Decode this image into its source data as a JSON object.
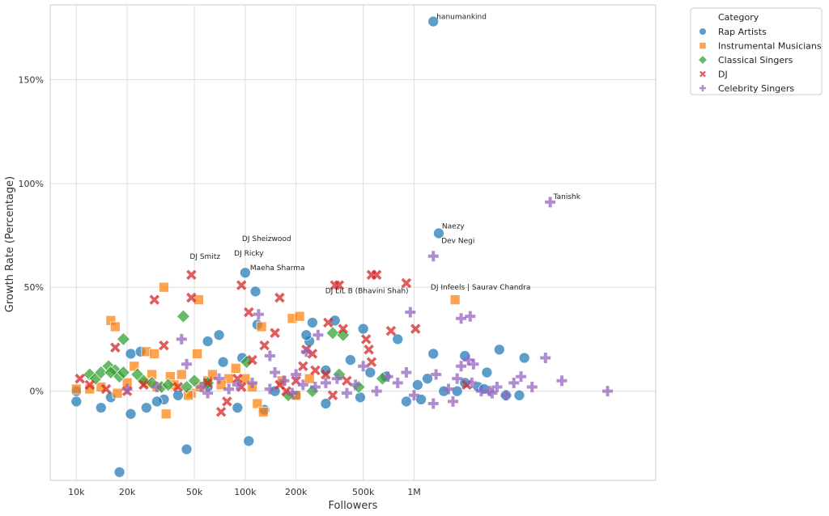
{
  "chart_data": {
    "type": "scatter",
    "xlabel": "Followers",
    "ylabel": "Growth Rate (Percentage)",
    "x_scale": "log",
    "xlim": [
      7000,
      27000000
    ],
    "ylim": [
      -43,
      186
    ],
    "x_ticks": [
      {
        "value": 10000,
        "label": "10k"
      },
      {
        "value": 20000,
        "label": "20k"
      },
      {
        "value": 50000,
        "label": "50k"
      },
      {
        "value": 100000,
        "label": "100k"
      },
      {
        "value": 200000,
        "label": "200k"
      },
      {
        "value": 500000,
        "label": "500k"
      },
      {
        "value": 1000000,
        "label": "1M"
      }
    ],
    "y_ticks": [
      {
        "value": 0,
        "label": "0%"
      },
      {
        "value": 50,
        "label": "50%"
      },
      {
        "value": 100,
        "label": "100%"
      },
      {
        "value": 150,
        "label": "150%"
      }
    ],
    "grid": true,
    "legend": {
      "title": "Category",
      "placement": "outside-top-right"
    },
    "series": [
      {
        "name": "Rap Artists",
        "marker": "circle",
        "color": "#1f77b4",
        "points": [
          [
            1300000,
            178
          ],
          [
            1400000,
            76
          ],
          [
            100000,
            57
          ],
          [
            115000,
            48
          ],
          [
            1300000,
            18
          ],
          [
            800000,
            25
          ],
          [
            500000,
            30
          ],
          [
            340000,
            34
          ],
          [
            60000,
            24
          ],
          [
            70000,
            27
          ],
          [
            96000,
            16
          ],
          [
            74000,
            14
          ],
          [
            2000000,
            17
          ],
          [
            3200000,
            20
          ],
          [
            4500000,
            16
          ],
          [
            18000,
            -39
          ],
          [
            45000,
            -28
          ],
          [
            105000,
            -24
          ],
          [
            10000,
            -5
          ],
          [
            14000,
            -8
          ],
          [
            21000,
            -11
          ],
          [
            26000,
            -8
          ],
          [
            33000,
            -4
          ],
          [
            90000,
            -8
          ],
          [
            130000,
            -9
          ],
          [
            300000,
            -6
          ],
          [
            480000,
            -3
          ],
          [
            900000,
            -5
          ],
          [
            1100000,
            -4
          ],
          [
            1200000,
            6
          ],
          [
            1050000,
            3
          ],
          [
            1500000,
            0
          ],
          [
            2000000,
            4
          ],
          [
            2400000,
            2
          ],
          [
            2700000,
            9
          ],
          [
            3500000,
            -2
          ],
          [
            4200000,
            -2
          ],
          [
            21000,
            18
          ],
          [
            24000,
            19
          ],
          [
            118000,
            32
          ],
          [
            250000,
            33
          ],
          [
            240000,
            24
          ],
          [
            230000,
            27
          ],
          [
            300000,
            10
          ],
          [
            420000,
            15
          ],
          [
            200000,
            -2
          ],
          [
            150000,
            0
          ],
          [
            60000,
            2
          ],
          [
            40000,
            -2
          ],
          [
            30000,
            -5
          ],
          [
            16000,
            -3
          ],
          [
            10000,
            0
          ],
          [
            550000,
            9
          ],
          [
            680000,
            7
          ],
          [
            1800000,
            0
          ],
          [
            2600000,
            1
          ]
        ]
      },
      {
        "name": "Instrumental Musicians",
        "marker": "square",
        "color": "#ff7f0e",
        "points": [
          [
            16000,
            34
          ],
          [
            17000,
            31
          ],
          [
            33000,
            50
          ],
          [
            53000,
            44
          ],
          [
            125000,
            31
          ],
          [
            190000,
            35
          ],
          [
            210000,
            36
          ],
          [
            1750000,
            44
          ],
          [
            26000,
            19
          ],
          [
            29000,
            18
          ],
          [
            52000,
            18
          ],
          [
            22000,
            12
          ],
          [
            34000,
            -11
          ],
          [
            118000,
            -6
          ],
          [
            128000,
            -10
          ],
          [
            28000,
            8
          ],
          [
            36000,
            7
          ],
          [
            42000,
            8
          ],
          [
            48000,
            -1
          ],
          [
            54000,
            2
          ],
          [
            60000,
            5
          ],
          [
            64000,
            8
          ],
          [
            80000,
            6
          ],
          [
            88000,
            11
          ],
          [
            100000,
            6
          ],
          [
            110000,
            2
          ],
          [
            200000,
            -2
          ],
          [
            12000,
            1
          ],
          [
            14000,
            2
          ],
          [
            17500,
            -1
          ],
          [
            20000,
            4
          ],
          [
            38000,
            3
          ],
          [
            46000,
            -2
          ],
          [
            72000,
            3
          ],
          [
            165000,
            5
          ],
          [
            240000,
            6
          ],
          [
            10000,
            1
          ],
          [
            26000,
            4
          ],
          [
            30000,
            2
          ]
        ]
      },
      {
        "name": "Classical Singers",
        "marker": "diamond",
        "color": "#2ca02c",
        "points": [
          [
            43000,
            36
          ],
          [
            19000,
            25
          ],
          [
            15500,
            12
          ],
          [
            12000,
            8
          ],
          [
            13000,
            6
          ],
          [
            14000,
            9
          ],
          [
            17000,
            10
          ],
          [
            18000,
            7
          ],
          [
            23000,
            8
          ],
          [
            25000,
            5
          ],
          [
            32000,
            2
          ],
          [
            50000,
            5
          ],
          [
            330000,
            28
          ],
          [
            380000,
            27
          ],
          [
            360000,
            8
          ],
          [
            470000,
            2
          ],
          [
            180000,
            -2
          ],
          [
            250000,
            0
          ],
          [
            650000,
            6
          ],
          [
            102000,
            14
          ],
          [
            16000,
            9
          ],
          [
            19000,
            9
          ],
          [
            28000,
            4
          ],
          [
            35000,
            3
          ],
          [
            45000,
            2
          ],
          [
            60000,
            4
          ]
        ]
      },
      {
        "name": "DJ",
        "marker": "x",
        "color": "#d62728",
        "points": [
          [
            48000,
            56
          ],
          [
            95000,
            51
          ],
          [
            160000,
            45
          ],
          [
            48000,
            45
          ],
          [
            29000,
            44
          ],
          [
            33000,
            22
          ],
          [
            17000,
            21
          ],
          [
            340000,
            51
          ],
          [
            360000,
            51
          ],
          [
            560000,
            56
          ],
          [
            600000,
            56
          ],
          [
            900000,
            52
          ],
          [
            730000,
            29
          ],
          [
            1020000,
            30
          ],
          [
            130000,
            22
          ],
          [
            150000,
            28
          ],
          [
            105000,
            38
          ],
          [
            110000,
            15
          ],
          [
            230000,
            20
          ],
          [
            250000,
            18
          ],
          [
            310000,
            33
          ],
          [
            380000,
            30
          ],
          [
            520000,
            25
          ],
          [
            540000,
            20
          ],
          [
            560000,
            14
          ],
          [
            72000,
            -10
          ],
          [
            78000,
            -5
          ],
          [
            95000,
            2
          ],
          [
            160000,
            3
          ],
          [
            175000,
            0
          ],
          [
            200000,
            5
          ],
          [
            220000,
            12
          ],
          [
            260000,
            10
          ],
          [
            300000,
            8
          ],
          [
            400000,
            5
          ],
          [
            10500,
            6
          ],
          [
            12000,
            3
          ],
          [
            15000,
            1
          ],
          [
            20000,
            0
          ],
          [
            25000,
            3
          ],
          [
            40000,
            2
          ],
          [
            60000,
            4
          ],
          [
            90000,
            6
          ],
          [
            330000,
            -2
          ],
          [
            2050000,
            3
          ]
        ]
      },
      {
        "name": "Celebrity Singers",
        "marker": "plus",
        "color": "#9467bd",
        "points": [
          [
            6400000,
            91
          ],
          [
            1300000,
            65
          ],
          [
            950000,
            38
          ],
          [
            1900000,
            35
          ],
          [
            2150000,
            36
          ],
          [
            42000,
            25
          ],
          [
            120000,
            37
          ],
          [
            140000,
            17
          ],
          [
            230000,
            19
          ],
          [
            270000,
            27
          ],
          [
            2100000,
            15
          ],
          [
            2250000,
            13
          ],
          [
            1900000,
            12
          ],
          [
            1350000,
            8
          ],
          [
            1600000,
            1
          ],
          [
            1800000,
            6
          ],
          [
            2200000,
            4
          ],
          [
            2500000,
            0
          ],
          [
            2800000,
            0
          ],
          [
            3100000,
            2
          ],
          [
            3500000,
            -2
          ],
          [
            3900000,
            4
          ],
          [
            4300000,
            7
          ],
          [
            5000000,
            2
          ],
          [
            6000000,
            16
          ],
          [
            7500000,
            5
          ],
          [
            14000000,
            0
          ],
          [
            1300000,
            -6
          ],
          [
            1700000,
            -5
          ],
          [
            1000000,
            -2
          ],
          [
            800000,
            4
          ],
          [
            700000,
            7
          ],
          [
            600000,
            0
          ],
          [
            450000,
            3
          ],
          [
            350000,
            6
          ],
          [
            300000,
            4
          ],
          [
            260000,
            2
          ],
          [
            200000,
            8
          ],
          [
            170000,
            5
          ],
          [
            140000,
            1
          ],
          [
            110000,
            4
          ],
          [
            90000,
            3
          ],
          [
            70000,
            6
          ],
          [
            55000,
            2
          ],
          [
            45000,
            13
          ],
          [
            60000,
            -1
          ],
          [
            80000,
            1
          ],
          [
            30000,
            2
          ],
          [
            20000,
            1
          ],
          [
            150000,
            9
          ],
          [
            190000,
            -1
          ],
          [
            220000,
            3
          ],
          [
            400000,
            -1
          ],
          [
            500000,
            12
          ],
          [
            900000,
            9
          ],
          [
            2900000,
            -1
          ]
        ]
      }
    ],
    "annotations": [
      {
        "text": "hanumankind",
        "x": 1300000,
        "y": 178
      },
      {
        "text": "Tanishk",
        "x": 6400000,
        "y": 91
      },
      {
        "text": "Naezy",
        "x": 1400000,
        "y": 76
      },
      {
        "text": "Dev Negi",
        "x": 1300000,
        "y": 65
      },
      {
        "text": "DJ Sheizwood",
        "x": 560000,
        "y": 56
      },
      {
        "text": "DJ Ricky",
        "x": 600000,
        "y": 56
      },
      {
        "text": "DJ Infeels | Saurav Chandra",
        "x": 900000,
        "y": 52
      },
      {
        "text": "DJ LiL B (Bhavini Shah)",
        "x": 340000,
        "y": 51
      },
      {
        "text": "DJ Smitz",
        "x": 48000,
        "y": 56
      },
      {
        "text": "Maeha Sharma",
        "x": 100000,
        "y": 57
      }
    ]
  }
}
